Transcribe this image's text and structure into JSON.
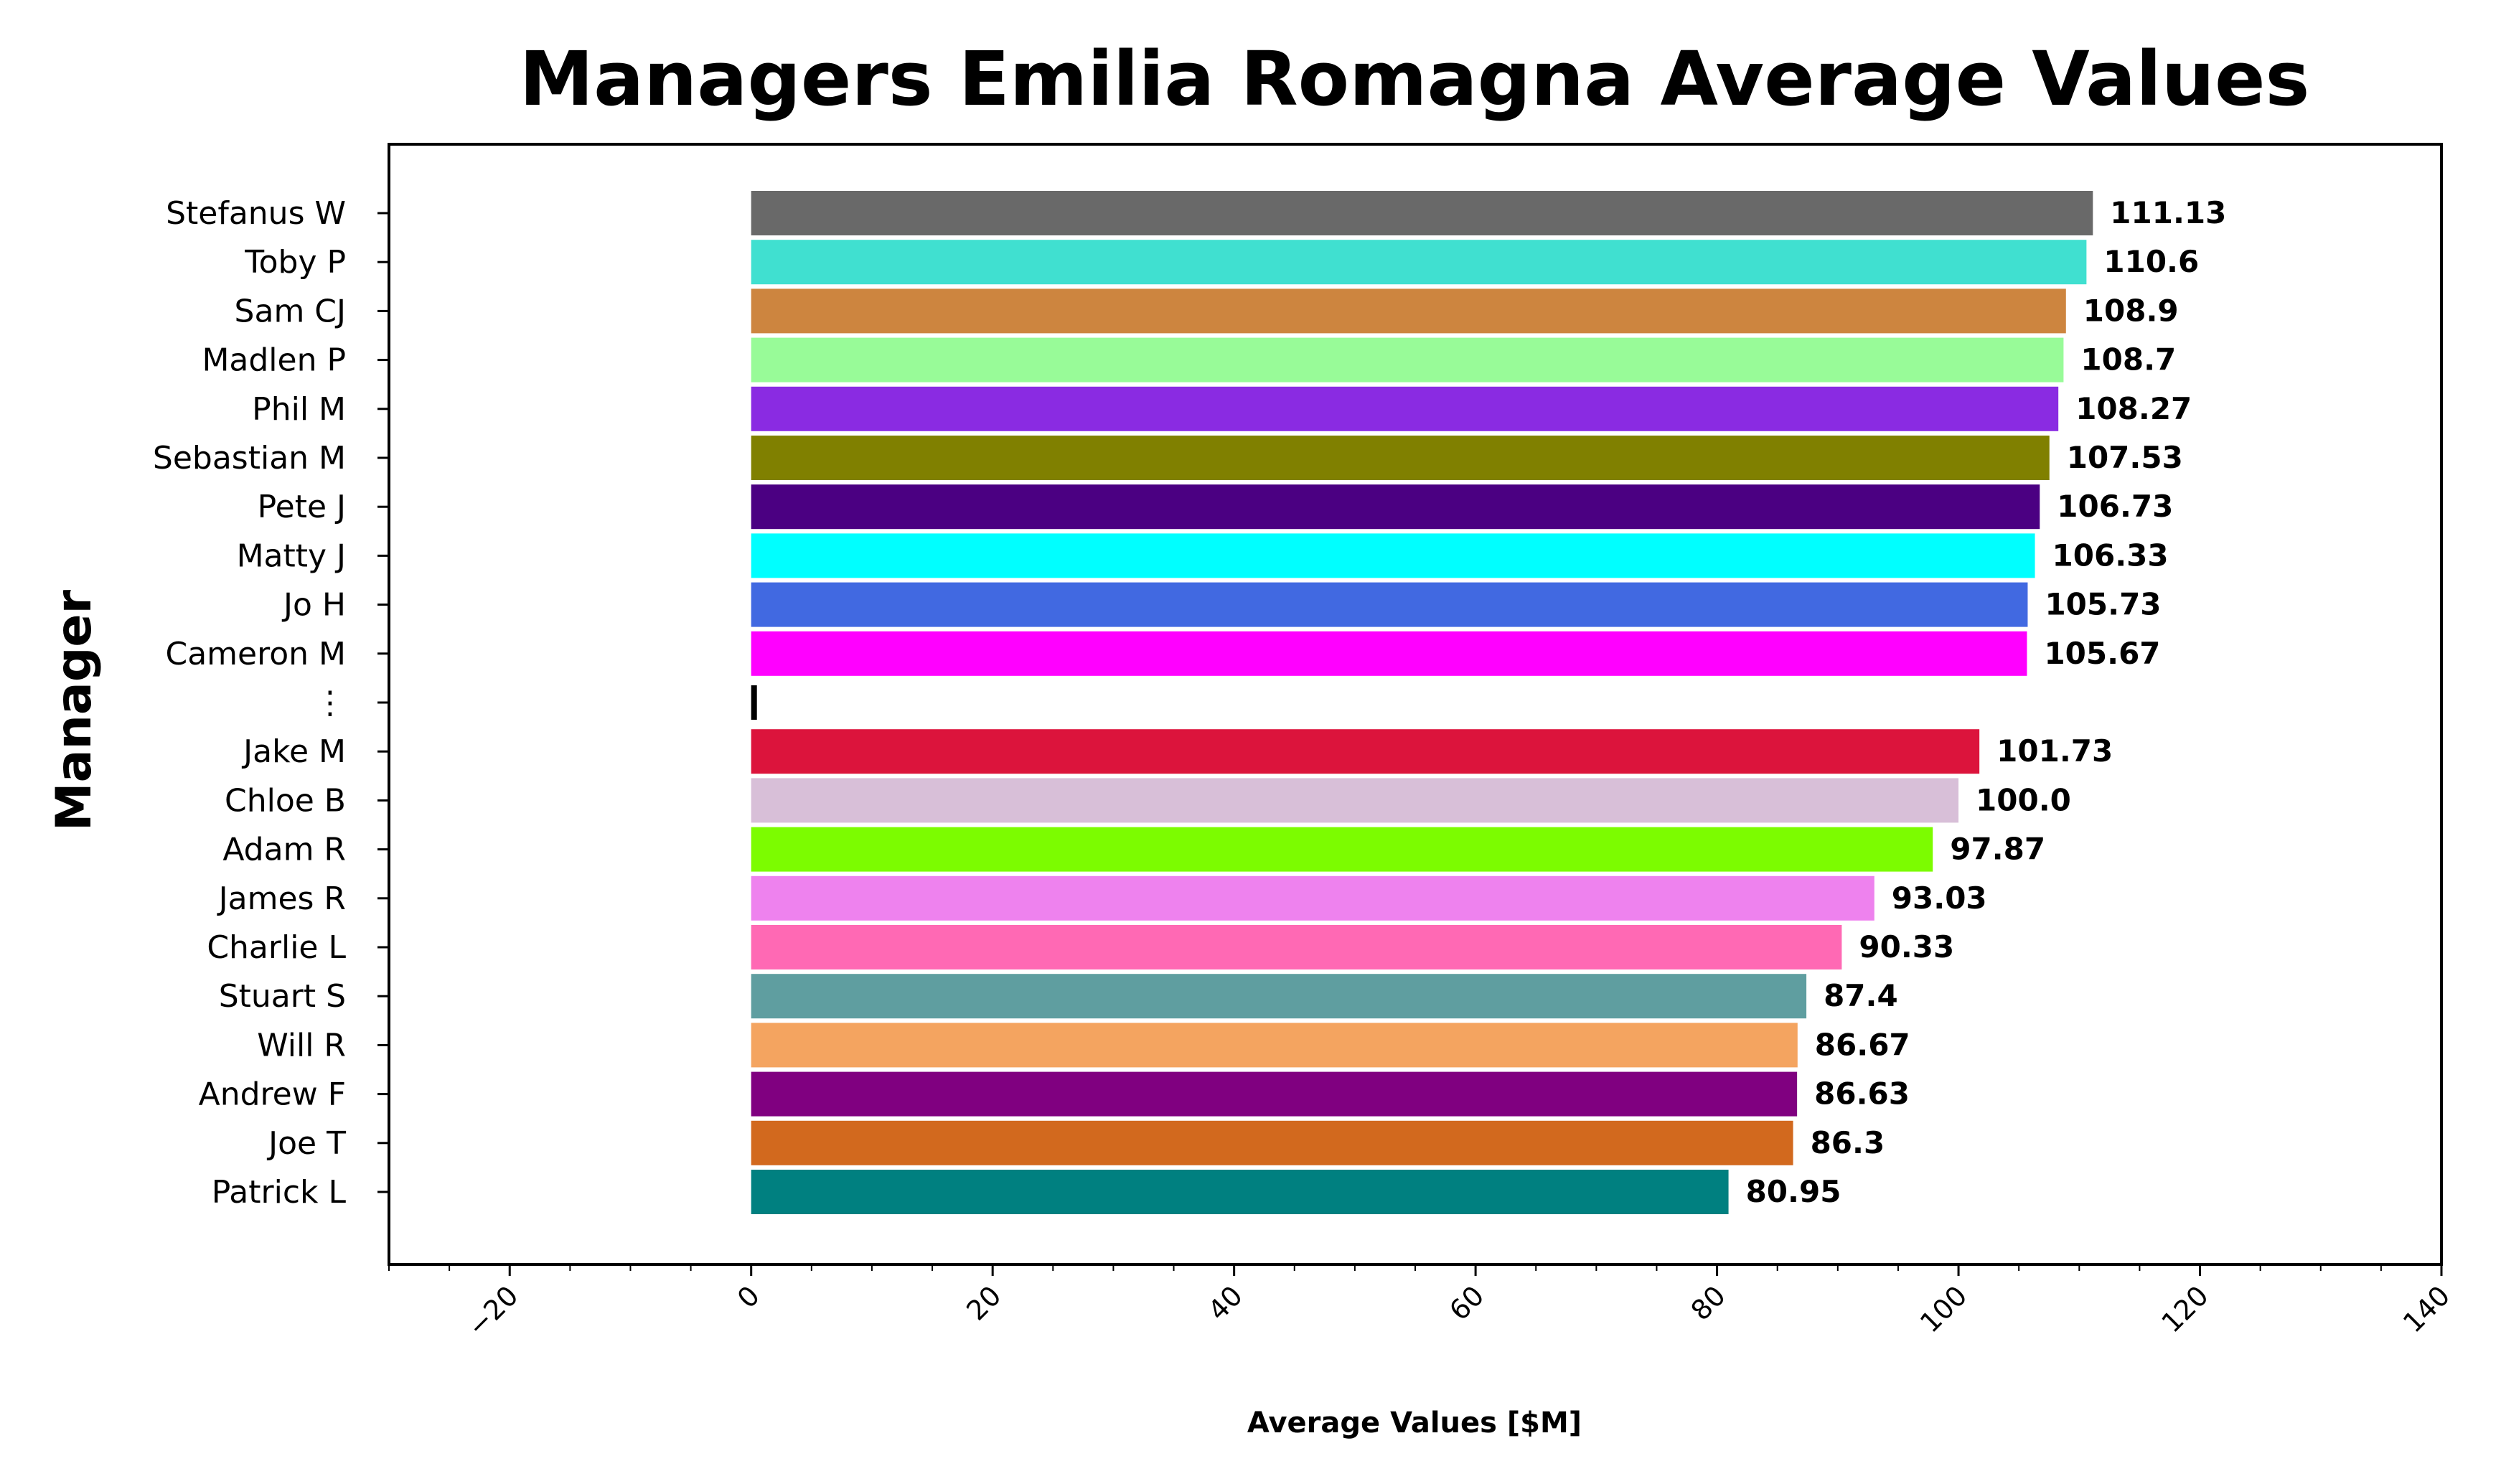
{
  "chart_data": {
    "type": "bar",
    "orientation": "horizontal",
    "title": "Managers Emilia Romagna Average Values",
    "xlabel": "Average Values [$M]",
    "ylabel": "Manager",
    "xlim": [
      -30,
      140
    ],
    "xticks": [
      -20,
      0,
      20,
      40,
      60,
      80,
      100,
      120,
      140
    ],
    "grid": false,
    "legend": "none",
    "categories": [
      "Stefanus W",
      "Toby P",
      "Sam CJ",
      "Madlen P",
      "Phil M",
      "Sebastian M",
      "Pete J",
      "Matty J",
      "Jo H",
      "Cameron M",
      "⋮",
      "Jake M",
      "Chloe B",
      "Adam R",
      "James R",
      "Charlie L",
      "Stuart S",
      "Will R",
      "Andrew F",
      "Joe T",
      "Patrick L"
    ],
    "values": [
      111.13,
      110.6,
      108.9,
      108.7,
      108.27,
      107.53,
      106.73,
      106.33,
      105.73,
      105.67,
      null,
      101.73,
      100.0,
      97.87,
      93.03,
      90.33,
      87.4,
      86.67,
      86.63,
      86.3,
      80.95
    ],
    "value_labels": [
      "111.13",
      "110.6",
      "108.9",
      "108.7",
      "108.27",
      "107.53",
      "106.73",
      "106.33",
      "105.73",
      "105.67",
      "",
      "101.73",
      "100.0",
      "97.87",
      "93.03",
      "90.33",
      "87.4",
      "86.67",
      "86.63",
      "86.3",
      "80.95"
    ],
    "colors": [
      "#696969",
      "#40e0d0",
      "#cd853f",
      "#98fb98",
      "#8a2be2",
      "#808000",
      "#4b0082",
      "#00ffff",
      "#4169e1",
      "#ff00ff",
      "#000000",
      "#dc143c",
      "#d8bfd8",
      "#7cfc00",
      "#ee82ee",
      "#ff69b4",
      "#5f9ea0",
      "#f4a460",
      "#800080",
      "#d2691e",
      "#008080"
    ]
  }
}
